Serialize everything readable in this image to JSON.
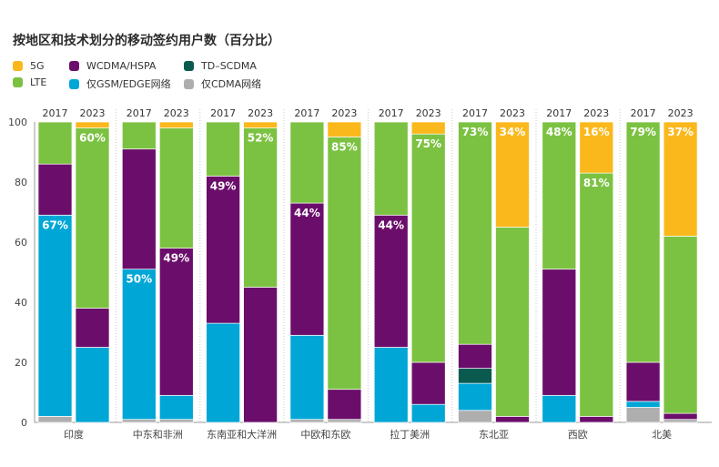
{
  "title": "按地区和技术划分的移动签约用户数（百分比）",
  "legend": [
    {
      "key": "5g",
      "label": "5G",
      "color": "#fbb81c"
    },
    {
      "key": "wcdma",
      "label": "WCDMA/HSPA",
      "color": "#6b0e6b"
    },
    {
      "key": "tdscdma",
      "label": "TD–SCDMA",
      "color": "#0a5a4f"
    },
    {
      "key": "lte",
      "label": "LTE",
      "color": "#7cc242"
    },
    {
      "key": "gsm",
      "label": "仅GSM/EDGE网络",
      "color": "#00a6d6"
    },
    {
      "key": "cdma",
      "label": "仅CDMA网络",
      "color": "#aeaeae"
    }
  ],
  "chart_data": {
    "type": "bar",
    "stacked": true,
    "ylim": [
      0,
      100
    ],
    "yticks": [
      0,
      20,
      40,
      60,
      80,
      100
    ],
    "grid": false,
    "stack_order": [
      "cdma",
      "gsm",
      "tdscdma",
      "wcdma",
      "lte",
      "5g"
    ],
    "groups": [
      {
        "region": "印度",
        "bars": [
          {
            "year": "2017",
            "values": {
              "cdma": 2,
              "gsm": 67,
              "tdscdma": 0,
              "wcdma": 17,
              "lte": 14,
              "5g": 0
            },
            "labels": [
              {
                "series": "gsm",
                "text": "67%"
              }
            ]
          },
          {
            "year": "2023",
            "values": {
              "cdma": 0,
              "gsm": 25,
              "tdscdma": 0,
              "wcdma": 13,
              "lte": 60,
              "5g": 2
            },
            "labels": [
              {
                "series": "lte",
                "text": "60%"
              }
            ]
          }
        ]
      },
      {
        "region": "中东和非洲",
        "bars": [
          {
            "year": "2017",
            "values": {
              "cdma": 1,
              "gsm": 50,
              "tdscdma": 0,
              "wcdma": 40,
              "lte": 9,
              "5g": 0
            },
            "labels": [
              {
                "series": "gsm",
                "text": "50%"
              }
            ]
          },
          {
            "year": "2023",
            "values": {
              "cdma": 1,
              "gsm": 8,
              "tdscdma": 0,
              "wcdma": 49,
              "lte": 40,
              "5g": 2
            },
            "labels": [
              {
                "series": "wcdma",
                "text": "49%"
              }
            ]
          }
        ]
      },
      {
        "region": "东南亚和大洋洲",
        "bars": [
          {
            "year": "2017",
            "values": {
              "cdma": 0,
              "gsm": 33,
              "tdscdma": 0,
              "wcdma": 49,
              "lte": 18,
              "5g": 0
            },
            "labels": [
              {
                "series": "wcdma",
                "text": "49%"
              }
            ]
          },
          {
            "year": "2023",
            "values": {
              "cdma": 0,
              "gsm": 0,
              "tdscdma": 0,
              "wcdma": 45,
              "lte": 53,
              "5g": 2
            },
            "labels": [
              {
                "series": "lte",
                "text": "52%"
              }
            ]
          }
        ]
      },
      {
        "region": "中欧和东欧",
        "bars": [
          {
            "year": "2017",
            "values": {
              "cdma": 1,
              "gsm": 28,
              "tdscdma": 0,
              "wcdma": 44,
              "lte": 27,
              "5g": 0
            },
            "labels": [
              {
                "series": "wcdma",
                "text": "44%"
              }
            ]
          },
          {
            "year": "2023",
            "values": {
              "cdma": 1,
              "gsm": 0,
              "tdscdma": 0,
              "wcdma": 10,
              "lte": 84,
              "5g": 5
            },
            "labels": [
              {
                "series": "lte",
                "text": "85%"
              }
            ]
          }
        ]
      },
      {
        "region": "拉丁美洲",
        "bars": [
          {
            "year": "2017",
            "values": {
              "cdma": 0,
              "gsm": 25,
              "tdscdma": 0,
              "wcdma": 44,
              "lte": 31,
              "5g": 0
            },
            "labels": [
              {
                "series": "wcdma",
                "text": "44%"
              }
            ]
          },
          {
            "year": "2023",
            "values": {
              "cdma": 0,
              "gsm": 6,
              "tdscdma": 0,
              "wcdma": 14,
              "lte": 76,
              "5g": 4
            },
            "labels": [
              {
                "series": "lte",
                "text": "75%"
              }
            ]
          }
        ]
      },
      {
        "region": "东北亚",
        "bars": [
          {
            "year": "2017",
            "values": {
              "cdma": 4,
              "gsm": 9,
              "tdscdma": 5,
              "wcdma": 8,
              "lte": 74,
              "5g": 0
            },
            "labels": [
              {
                "series": "lte",
                "text": "73%"
              }
            ]
          },
          {
            "year": "2023",
            "values": {
              "cdma": 0,
              "gsm": 0,
              "tdscdma": 0,
              "wcdma": 2,
              "lte": 63,
              "5g": 35
            },
            "labels": [
              {
                "series": "5g",
                "text": "34%"
              }
            ]
          }
        ]
      },
      {
        "region": "西欧",
        "bars": [
          {
            "year": "2017",
            "values": {
              "cdma": 0,
              "gsm": 9,
              "tdscdma": 0,
              "wcdma": 42,
              "lte": 49,
              "5g": 0
            },
            "labels": [
              {
                "series": "lte",
                "text": "48%"
              }
            ]
          },
          {
            "year": "2023",
            "values": {
              "cdma": 0,
              "gsm": 0,
              "tdscdma": 0,
              "wcdma": 2,
              "lte": 81,
              "5g": 17
            },
            "labels": [
              {
                "series": "lte",
                "text": "81%"
              },
              {
                "series": "5g",
                "text": "16%"
              }
            ]
          }
        ]
      },
      {
        "region": "北美",
        "bars": [
          {
            "year": "2017",
            "values": {
              "cdma": 5,
              "gsm": 2,
              "tdscdma": 0,
              "wcdma": 13,
              "lte": 80,
              "5g": 0
            },
            "labels": [
              {
                "series": "lte",
                "text": "79%"
              }
            ]
          },
          {
            "year": "2023",
            "values": {
              "cdma": 1,
              "gsm": 0,
              "tdscdma": 0,
              "wcdma": 2,
              "lte": 59,
              "5g": 38
            },
            "labels": [
              {
                "series": "5g",
                "text": "37%"
              }
            ]
          }
        ]
      }
    ]
  }
}
